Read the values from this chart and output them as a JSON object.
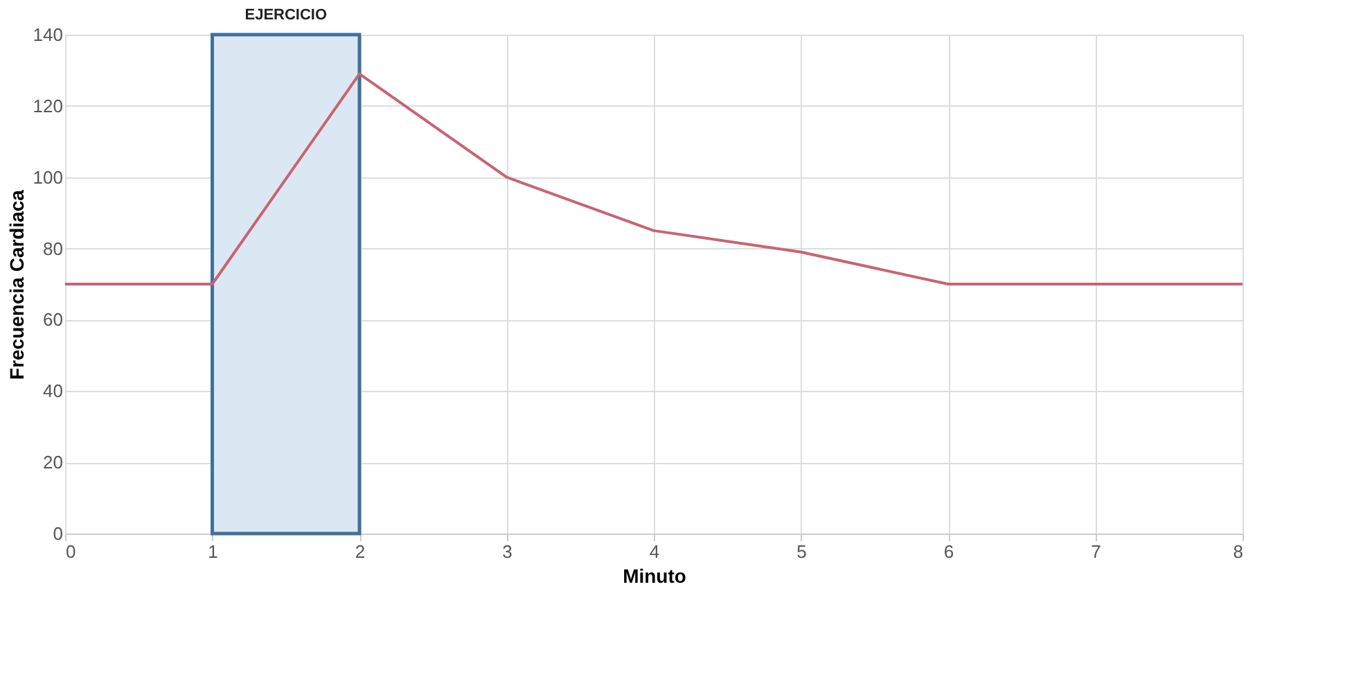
{
  "chart_data": {
    "type": "line",
    "xlabel": "Minuto",
    "ylabel": "Frecuencia Cardiaca",
    "x": [
      0,
      1,
      2,
      3,
      4,
      5,
      6,
      7,
      8
    ],
    "series": [
      {
        "color": "#c86470",
        "values": [
          70,
          70,
          129,
          100,
          85,
          79,
          70,
          70,
          70
        ]
      }
    ],
    "xlim": [
      0,
      8
    ],
    "xticks": [
      0,
      1,
      2,
      3,
      4,
      5,
      6,
      7,
      8
    ],
    "ylim": [
      0,
      140
    ],
    "yticks": [
      0,
      20,
      40,
      60,
      80,
      100,
      120,
      140
    ],
    "grid": true,
    "marker": "none",
    "line_style": "solid",
    "bands": [
      {
        "axis": "x",
        "from": 1,
        "to": 2,
        "label": "EJERCICIO",
        "color": "#dbe8f4"
      }
    ]
  }
}
